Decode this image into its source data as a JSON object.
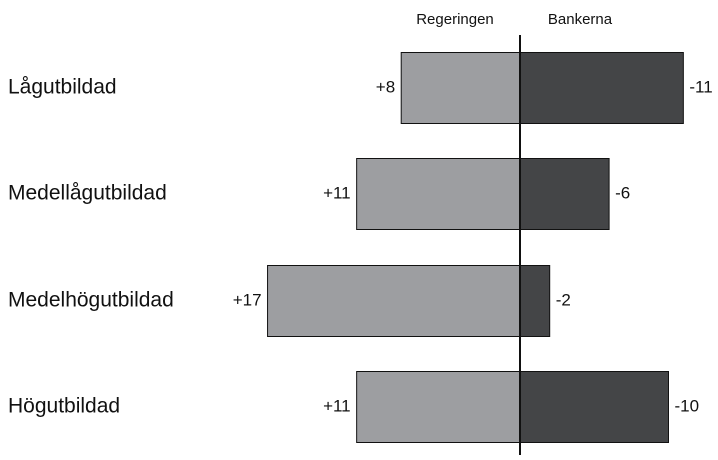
{
  "chart_data": {
    "type": "bar",
    "orientation": "horizontal-diverging",
    "legend": [
      "Regeringen",
      "Bankerna"
    ],
    "categories": [
      "Lågutbildad",
      "Medellågutbildad",
      "Medelhögutbildad",
      "Högutbildad"
    ],
    "series": [
      {
        "name": "Regeringen",
        "color": "#9d9ea1",
        "values": [
          8,
          11,
          17,
          11
        ],
        "labels": [
          "+8",
          "+11",
          "+17",
          "+11"
        ]
      },
      {
        "name": "Bankerna",
        "color": "#444547",
        "values": [
          -11,
          -6,
          -2,
          -10
        ],
        "labels": [
          "-11",
          "-6",
          "-2",
          "-10"
        ]
      }
    ],
    "grid": false
  }
}
